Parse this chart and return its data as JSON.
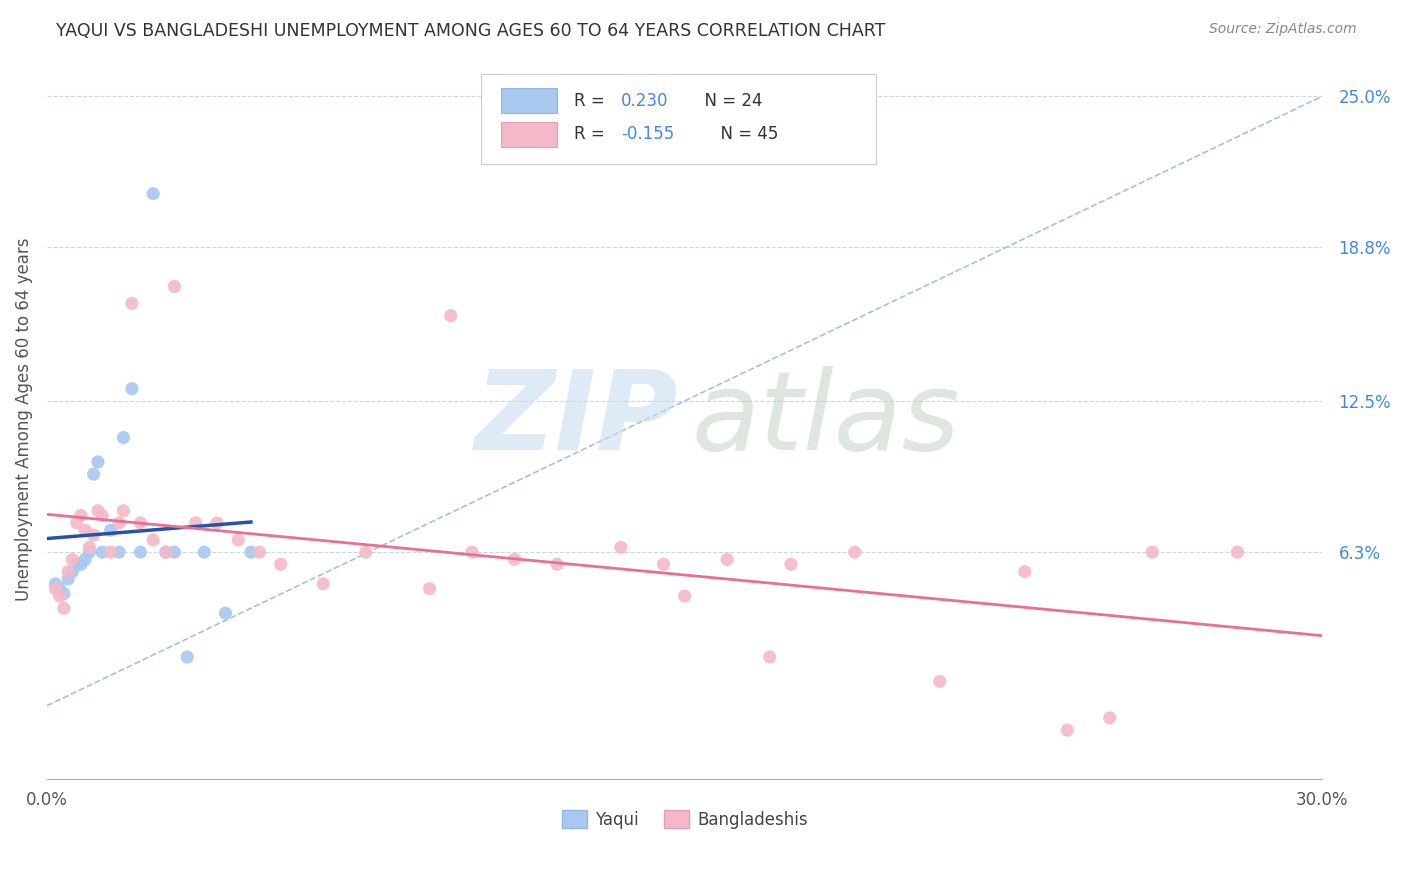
{
  "title": "YAQUI VS BANGLADESHI UNEMPLOYMENT AMONG AGES 60 TO 64 YEARS CORRELATION CHART",
  "source": "Source: ZipAtlas.com",
  "ylabel": "Unemployment Among Ages 60 to 64 years",
  "xlim": [
    0.0,
    0.3
  ],
  "ylim": [
    -0.03,
    0.265
  ],
  "ytick_labels": [
    "6.3%",
    "12.5%",
    "18.8%",
    "25.0%"
  ],
  "ytick_values": [
    0.063,
    0.125,
    0.188,
    0.25
  ],
  "yaqui_color": "#A8C8F0",
  "bangladeshi_color": "#F5B8C8",
  "yaqui_line_color": "#2255AA",
  "bangladeshi_line_color": "#E87090",
  "ref_line_color": "#A8C0D8",
  "r_value_color": "#4488DD",
  "yaqui_x": [
    0.002,
    0.003,
    0.004,
    0.005,
    0.006,
    0.007,
    0.008,
    0.009,
    0.01,
    0.011,
    0.012,
    0.013,
    0.015,
    0.017,
    0.018,
    0.02,
    0.022,
    0.025,
    0.028,
    0.03,
    0.033,
    0.037,
    0.042,
    0.048
  ],
  "yaqui_y": [
    0.05,
    0.048,
    0.046,
    0.052,
    0.055,
    0.058,
    0.058,
    0.06,
    0.063,
    0.095,
    0.1,
    0.063,
    0.072,
    0.063,
    0.11,
    0.13,
    0.063,
    0.21,
    0.063,
    0.063,
    0.02,
    0.063,
    0.038,
    0.063
  ],
  "bangladeshi_x": [
    0.002,
    0.003,
    0.004,
    0.005,
    0.006,
    0.007,
    0.008,
    0.009,
    0.01,
    0.011,
    0.012,
    0.013,
    0.015,
    0.017,
    0.018,
    0.02,
    0.022,
    0.025,
    0.028,
    0.03,
    0.035,
    0.04,
    0.045,
    0.05,
    0.055,
    0.065,
    0.075,
    0.09,
    0.1,
    0.11,
    0.12,
    0.135,
    0.145,
    0.16,
    0.175,
    0.19,
    0.21,
    0.23,
    0.25,
    0.26,
    0.28,
    0.095,
    0.15,
    0.17,
    0.24
  ],
  "bangladeshi_y": [
    0.048,
    0.045,
    0.04,
    0.055,
    0.06,
    0.075,
    0.078,
    0.072,
    0.065,
    0.07,
    0.08,
    0.078,
    0.063,
    0.075,
    0.08,
    0.165,
    0.075,
    0.068,
    0.063,
    0.172,
    0.075,
    0.075,
    0.068,
    0.063,
    0.058,
    0.05,
    0.063,
    0.048,
    0.063,
    0.06,
    0.058,
    0.065,
    0.058,
    0.06,
    0.058,
    0.063,
    0.01,
    0.055,
    -0.005,
    0.063,
    0.063,
    0.16,
    0.045,
    0.02,
    -0.01
  ]
}
